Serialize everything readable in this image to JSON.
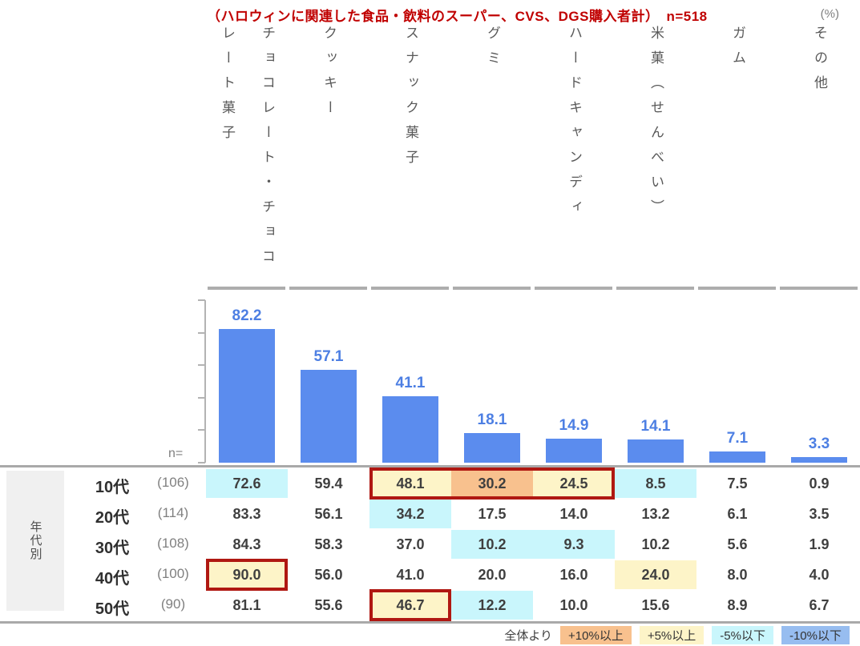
{
  "title": "（ハロウィンに関連した食品・飲料のスーパー、CVS、DGS購入者計）　n=518",
  "unit_label": "(%)",
  "n_axis_label": "n=",
  "column_headers": [
    "チョコレート・チョコ\nレート菓子",
    "クッキー",
    "スナック菓子",
    "グミ",
    "ハードキャンディ",
    "米菓（せんべい）",
    "ガム",
    "その他"
  ],
  "chart_data": {
    "type": "bar",
    "title": "（ハロウィンに関連した食品・飲料のスーパー、CVS、DGS購入者計）　n=518",
    "categories": [
      "チョコレート・チョコレート菓子",
      "クッキー",
      "スナック菓子",
      "グミ",
      "ハードキャンディ",
      "米菓（せんべい）",
      "ガム",
      "その他"
    ],
    "values": [
      82.2,
      57.1,
      41.1,
      18.1,
      14.9,
      14.1,
      7.1,
      3.3
    ],
    "ylabel": "%",
    "ylim": [
      0,
      100
    ],
    "ytick_step": 20,
    "grid": false,
    "bar_color": "#5b8cee",
    "value_label_color": "#4d7fe3"
  },
  "table": {
    "group_label": "年代別",
    "rows": [
      {
        "label": "10代",
        "n": "(106)",
        "values": [
          "72.6",
          "59.4",
          "48.1",
          "30.2",
          "24.5",
          "8.5",
          "7.5",
          "0.9"
        ],
        "highlights": [
          "minus5",
          null,
          "plus5",
          "plus10",
          "plus5",
          "minus5",
          null,
          null
        ]
      },
      {
        "label": "20代",
        "n": "(114)",
        "values": [
          "83.3",
          "56.1",
          "34.2",
          "17.5",
          "14.0",
          "13.2",
          "6.1",
          "3.5"
        ],
        "highlights": [
          null,
          null,
          "minus5",
          null,
          null,
          null,
          null,
          null
        ]
      },
      {
        "label": "30代",
        "n": "(108)",
        "values": [
          "84.3",
          "58.3",
          "37.0",
          "10.2",
          "9.3",
          "10.2",
          "5.6",
          "1.9"
        ],
        "highlights": [
          null,
          null,
          null,
          "minus5",
          "minus5",
          null,
          null,
          null
        ]
      },
      {
        "label": "40代",
        "n": "(100)",
        "values": [
          "90.0",
          "56.0",
          "41.0",
          "20.0",
          "16.0",
          "24.0",
          "8.0",
          "4.0"
        ],
        "highlights": [
          "plus5",
          null,
          null,
          null,
          null,
          "plus5",
          null,
          null
        ]
      },
      {
        "label": "50代",
        "n": "(90)",
        "values": [
          "81.1",
          "55.6",
          "46.7",
          "12.2",
          "10.0",
          "15.6",
          "8.9",
          "6.7"
        ],
        "highlights": [
          null,
          null,
          "plus5",
          "minus5",
          null,
          null,
          null,
          null
        ]
      }
    ],
    "red_boxes": [
      {
        "row": 0,
        "col_start": 2,
        "col_end": 4
      },
      {
        "row": 3,
        "col_start": 0,
        "col_end": 0
      },
      {
        "row": 4,
        "col_start": 2,
        "col_end": 2
      }
    ],
    "red_box_color": "#b01812"
  },
  "legend": {
    "prefix": "全体より",
    "items": [
      {
        "key": "plus10",
        "label": "+10%以上",
        "color": "#f8c18e"
      },
      {
        "key": "plus5",
        "label": "+5%以上",
        "color": "#fdf4c8"
      },
      {
        "key": "minus5",
        "label": "-5%以下",
        "color": "#c9f6fc"
      },
      {
        "key": "minus10",
        "label": "-10%以下",
        "color": "#97bdf0"
      }
    ]
  },
  "colors": {
    "title_red": "#c00000",
    "axis_gray": "#b3b3b3",
    "separator_gray": "#a9a9a9",
    "header_text": "#595959"
  }
}
